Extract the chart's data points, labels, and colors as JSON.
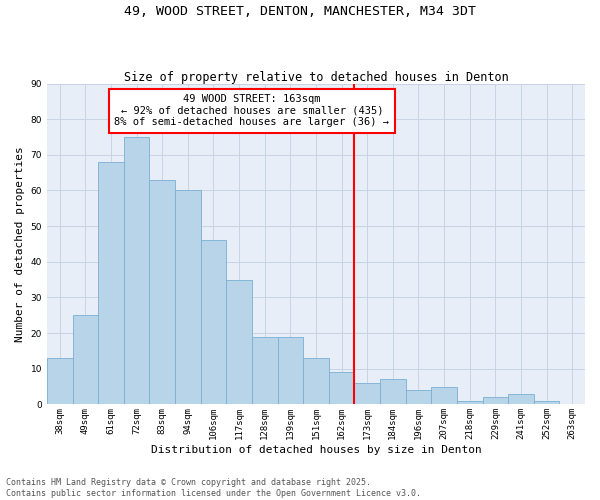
{
  "title_line1": "49, WOOD STREET, DENTON, MANCHESTER, M34 3DT",
  "title_line2": "Size of property relative to detached houses in Denton",
  "xlabel": "Distribution of detached houses by size in Denton",
  "ylabel": "Number of detached properties",
  "categories": [
    "38sqm",
    "49sqm",
    "61sqm",
    "72sqm",
    "83sqm",
    "94sqm",
    "106sqm",
    "117sqm",
    "128sqm",
    "139sqm",
    "151sqm",
    "162sqm",
    "173sqm",
    "184sqm",
    "196sqm",
    "207sqm",
    "218sqm",
    "229sqm",
    "241sqm",
    "252sqm",
    "263sqm"
  ],
  "values": [
    13,
    25,
    68,
    75,
    63,
    60,
    46,
    35,
    19,
    19,
    13,
    9,
    6,
    7,
    4,
    5,
    1,
    2,
    3,
    1,
    0
  ],
  "bar_color": "#b8d4e8",
  "bar_edge_color": "#7aafd4",
  "vline_x_idx": 11,
  "vline_color": "red",
  "annotation_text": "49 WOOD STREET: 163sqm\n← 92% of detached houses are smaller (435)\n8% of semi-detached houses are larger (36) →",
  "annotation_box_color": "red",
  "ylim": [
    0,
    90
  ],
  "yticks": [
    0,
    10,
    20,
    30,
    40,
    50,
    60,
    70,
    80,
    90
  ],
  "grid_color": "#c8d4e4",
  "bg_color": "#e8eef8",
  "footer_line1": "Contains HM Land Registry data © Crown copyright and database right 2025.",
  "footer_line2": "Contains public sector information licensed under the Open Government Licence v3.0.",
  "title_fontsize": 9.5,
  "subtitle_fontsize": 8.5,
  "axis_label_fontsize": 8,
  "tick_fontsize": 6.5,
  "annotation_fontsize": 7.5,
  "footer_fontsize": 6
}
